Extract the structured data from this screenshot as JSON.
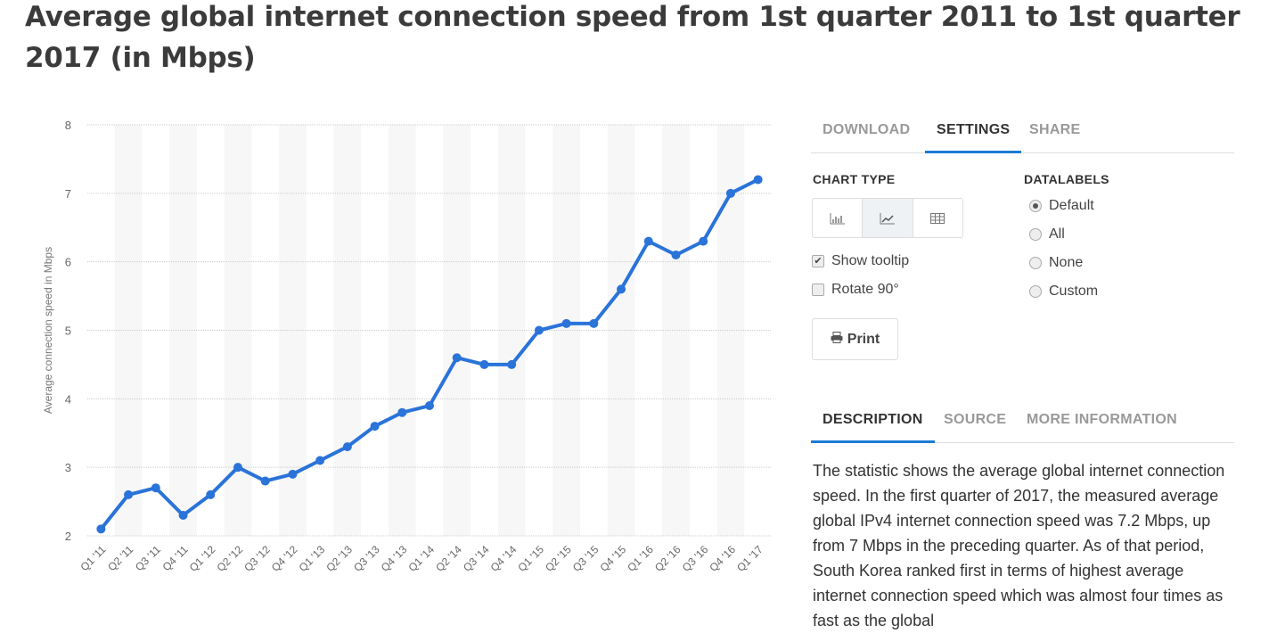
{
  "title": "Average global internet connection speed from 1st quarter 2011 to 1st quarter 2017 (in Mbps)",
  "settings_tabs": [
    "DOWNLOAD",
    "SETTINGS",
    "SHARE"
  ],
  "chart_type_label": "CHART TYPE",
  "chart_type_icons": [
    "bar-chart-icon",
    "line-chart-icon",
    "table-icon"
  ],
  "datalabels_label": "DATALABELS",
  "datalabel_options": [
    "Default",
    "All",
    "None",
    "Custom"
  ],
  "datalabel_selected": "Default",
  "show_tooltip": {
    "label": "Show tooltip",
    "checked": true
  },
  "rotate": {
    "label": "Rotate 90°",
    "checked": false
  },
  "print_label": "Print",
  "info_tabs": [
    "DESCRIPTION",
    "SOURCE",
    "MORE INFORMATION"
  ],
  "description": "The statistic shows the average global internet connection speed. In the first quarter of 2017, the measured average global IPv4 internet connection speed was 7.2 Mbps, up from 7 Mbps in the preceding quarter. As of that period, South Korea ranked first in terms of highest average internet connection speed which was almost four times as fast as the global",
  "colors": {
    "line": "#2a73d9",
    "accent": "#1b7bd5"
  },
  "chart_data": {
    "type": "line",
    "ylabel": "Average connection speed in Mbps",
    "xlabel": "",
    "ylim": [
      2,
      8
    ],
    "yticks": [
      2,
      3,
      4,
      5,
      6,
      7,
      8
    ],
    "grid": true,
    "categories": [
      "Q1 '11",
      "Q2 '11",
      "Q3 '11",
      "Q4 '11",
      "Q1 '12",
      "Q2 '12",
      "Q3 '12",
      "Q4 '12",
      "Q1 '13",
      "Q2 '13",
      "Q3 '13",
      "Q4 '13",
      "Q1 '14",
      "Q2 '14",
      "Q3 '14",
      "Q4 '14",
      "Q1 '15",
      "Q2 '15",
      "Q3 '15",
      "Q4 '15",
      "Q1 '16",
      "Q2 '16",
      "Q3 '16",
      "Q4 '16",
      "Q1 '17"
    ],
    "values": [
      2.1,
      2.6,
      2.7,
      2.3,
      2.6,
      3.0,
      2.8,
      2.9,
      3.1,
      3.3,
      3.6,
      3.8,
      3.9,
      4.6,
      4.5,
      4.5,
      5.0,
      5.1,
      5.1,
      5.6,
      6.3,
      6.1,
      6.3,
      7.0,
      7.2
    ]
  }
}
